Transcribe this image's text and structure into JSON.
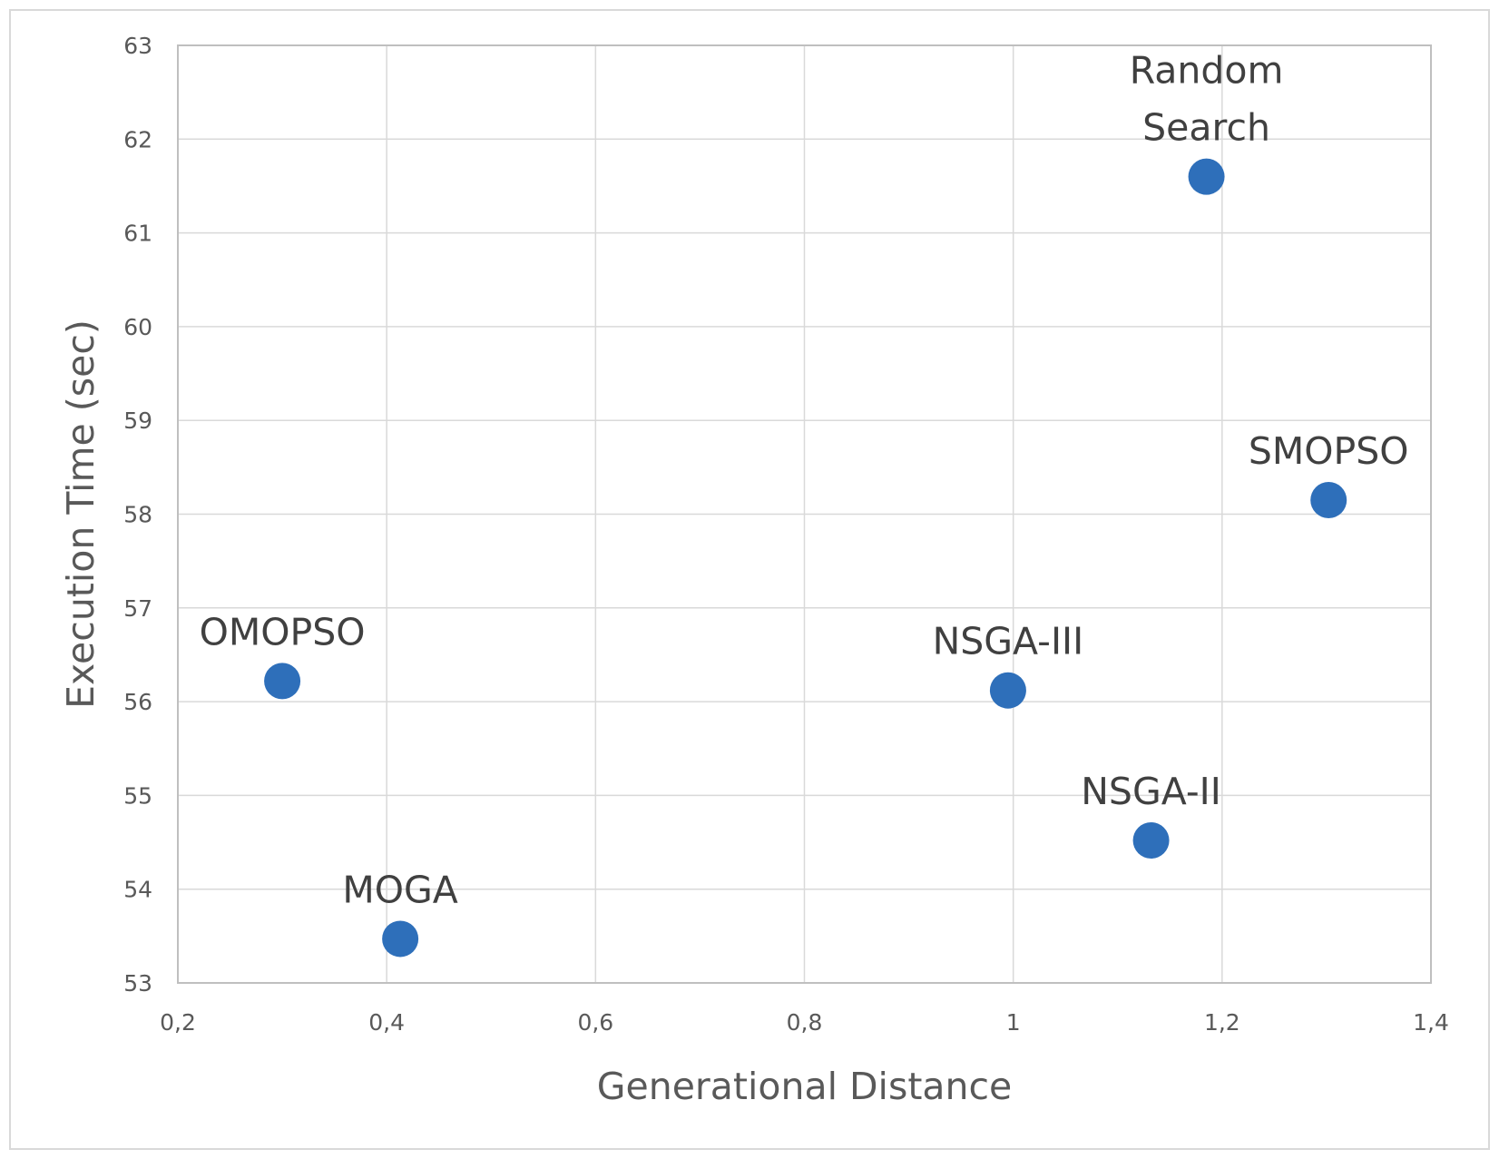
{
  "chart_data": {
    "type": "scatter",
    "title": "",
    "xlabel": "Generational Distance",
    "ylabel": "Execution Time (sec)",
    "xlim": [
      0.2,
      1.4
    ],
    "ylim": [
      53,
      63
    ],
    "x_ticks": [
      "0,2",
      "0,4",
      "0,6",
      "0,8",
      "1",
      "1,2",
      "1,4"
    ],
    "x_tick_values": [
      0.2,
      0.4,
      0.6,
      0.8,
      1.0,
      1.2,
      1.4
    ],
    "y_ticks": [
      "53",
      "54",
      "55",
      "56",
      "57",
      "58",
      "59",
      "60",
      "61",
      "62",
      "63"
    ],
    "y_tick_values": [
      53,
      54,
      55,
      56,
      57,
      58,
      59,
      60,
      61,
      62,
      63
    ],
    "grid": true,
    "legend": "none",
    "marker_color": "#2e6fba",
    "points": [
      {
        "label": "OMOPSO",
        "x": 0.3,
        "y": 56.22
      },
      {
        "label": "MOGA",
        "x": 0.413,
        "y": 53.47
      },
      {
        "label": "NSGA-III",
        "x": 0.995,
        "y": 56.12
      },
      {
        "label": "NSGA-II",
        "x": 1.132,
        "y": 54.52
      },
      {
        "label": "Random Search",
        "label_lines": [
          "Random",
          "Search"
        ],
        "x": 1.185,
        "y": 61.6
      },
      {
        "label": "SMOPSO",
        "x": 1.302,
        "y": 58.15
      }
    ]
  }
}
